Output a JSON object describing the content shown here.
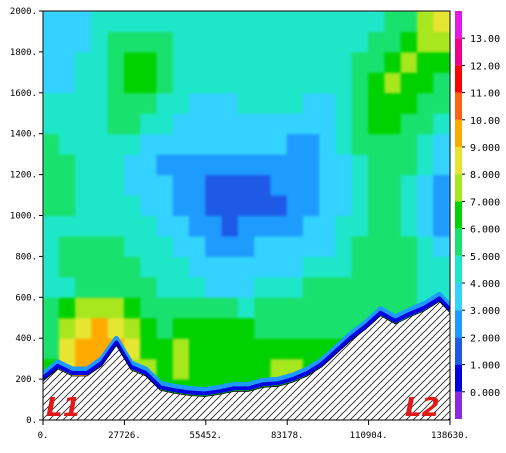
{
  "chart_data": {
    "type": "heatmap",
    "title": "",
    "xlabel": "",
    "ylabel": "",
    "xlim": [
      0,
      138630
    ],
    "ylim": [
      0,
      2000
    ],
    "x_ticks": [
      "0.",
      "27726.",
      "55452.",
      "83178.",
      "110904.",
      "138630."
    ],
    "x_tick_values": [
      0,
      27726,
      55452,
      83178,
      110904,
      138630
    ],
    "y_ticks": [
      "0.",
      "200.",
      "400.",
      "600.",
      "800.",
      "1000.",
      "1200.",
      "1400.",
      "1600.",
      "1800.",
      "2000."
    ],
    "y_tick_values": [
      0,
      200,
      400,
      600,
      800,
      1000,
      1200,
      1400,
      1600,
      1800,
      2000
    ],
    "colorbar": {
      "levels": [
        -1,
        0,
        1,
        2,
        3,
        4,
        5,
        6,
        7,
        8,
        9,
        10,
        11,
        12,
        13,
        14
      ],
      "labels": [
        "0.000",
        "1.000",
        "2.000",
        "3.000",
        "4.000",
        "5.000",
        "6.000",
        "7.000",
        "8.000",
        "9.000",
        "10.00",
        "11.00",
        "12.00",
        "13.00"
      ],
      "label_values": [
        0,
        1,
        2,
        3,
        4,
        5,
        6,
        7,
        8,
        9,
        10,
        11,
        12,
        13
      ],
      "colors": [
        "#8a2be2",
        "#0000e0",
        "#1e5ae6",
        "#1e9bff",
        "#33d2ff",
        "#1ee6c8",
        "#19e16e",
        "#00d200",
        "#a8e61e",
        "#e6e632",
        "#ffaa00",
        "#ff6414",
        "#ff0000",
        "#f00087",
        "#e619e6"
      ]
    },
    "terrain": {
      "x": [
        0,
        5000,
        10000,
        15000,
        20000,
        25000,
        30000,
        35000,
        40000,
        45000,
        50000,
        55000,
        60000,
        65000,
        70000,
        75000,
        80000,
        85000,
        90000,
        95000,
        100000,
        105000,
        110000,
        115000,
        120000,
        125000,
        130000,
        135000,
        138630
      ],
      "y": [
        190,
        250,
        215,
        215,
        265,
        365,
        245,
        215,
        145,
        130,
        120,
        115,
        125,
        140,
        140,
        160,
        165,
        185,
        215,
        260,
        325,
        390,
        445,
        510,
        470,
        505,
        535,
        580,
        525
      ]
    },
    "endpoint_labels": [
      "L1",
      "L2"
    ],
    "x_bins": 25,
    "y_bins": 20,
    "cells": [
      [
        7,
        9,
        10,
        9,
        8,
        7,
        7,
        7,
        7,
        7,
        7,
        7,
        7,
        7,
        6,
        6,
        6,
        6,
        6,
        6,
        5,
        -1,
        -1,
        -1,
        -1
      ],
      [
        7,
        9,
        10,
        10,
        9,
        8,
        8,
        7,
        7,
        7,
        7,
        7,
        7,
        7,
        7,
        7,
        7,
        7,
        6,
        6,
        5,
        -1,
        -1,
        -1,
        -1
      ],
      [
        7,
        9,
        10,
        10,
        10,
        8,
        8,
        7,
        8,
        7,
        7,
        7,
        7,
        7,
        8,
        8,
        7,
        7,
        7,
        6,
        6,
        5,
        4,
        -1,
        -1
      ],
      [
        6,
        9,
        10,
        10,
        10,
        9,
        7,
        7,
        8,
        7,
        7,
        7,
        7,
        7,
        7,
        7,
        7,
        7,
        7,
        6,
        6,
        5,
        5,
        5,
        4
      ],
      [
        6,
        8,
        9,
        10,
        9,
        8,
        7,
        6,
        7,
        7,
        7,
        7,
        7,
        6,
        6,
        6,
        6,
        6,
        6,
        6,
        6,
        6,
        5,
        5,
        5
      ],
      [
        6,
        7,
        8,
        8,
        8,
        7,
        6,
        6,
        6,
        6,
        6,
        6,
        5,
        6,
        6,
        6,
        6,
        6,
        6,
        6,
        6,
        6,
        6,
        5,
        5
      ],
      [
        5,
        5,
        6,
        6,
        6,
        6,
        6,
        5,
        5,
        5,
        4,
        4,
        4,
        5,
        5,
        5,
        6,
        6,
        6,
        6,
        6,
        6,
        6,
        5,
        5
      ],
      [
        5,
        6,
        6,
        6,
        6,
        6,
        5,
        5,
        5,
        4,
        4,
        4,
        4,
        4,
        4,
        4,
        5,
        5,
        5,
        6,
        6,
        6,
        6,
        5,
        5
      ],
      [
        5,
        6,
        6,
        6,
        6,
        5,
        5,
        5,
        4,
        4,
        3,
        3,
        3,
        4,
        4,
        4,
        4,
        4,
        5,
        6,
        6,
        6,
        6,
        5,
        4
      ],
      [
        5,
        5,
        5,
        5,
        5,
        5,
        5,
        4,
        4,
        3,
        3,
        2,
        3,
        3,
        3,
        3,
        4,
        4,
        5,
        5,
        6,
        6,
        5,
        4,
        3
      ],
      [
        6,
        6,
        5,
        5,
        5,
        5,
        4,
        4,
        3,
        3,
        2,
        2,
        2,
        2,
        2,
        3,
        3,
        4,
        4,
        5,
        6,
        6,
        5,
        4,
        3
      ],
      [
        6,
        6,
        5,
        5,
        5,
        4,
        4,
        4,
        3,
        3,
        2,
        2,
        2,
        2,
        3,
        3,
        3,
        4,
        4,
        5,
        6,
        6,
        5,
        4,
        3
      ],
      [
        6,
        6,
        5,
        5,
        5,
        4,
        4,
        3,
        3,
        3,
        3,
        3,
        3,
        3,
        3,
        3,
        3,
        4,
        4,
        5,
        6,
        6,
        6,
        5,
        4
      ],
      [
        6,
        5,
        5,
        5,
        5,
        5,
        4,
        4,
        4,
        4,
        4,
        4,
        4,
        4,
        4,
        3,
        3,
        4,
        5,
        6,
        6,
        6,
        6,
        5,
        4
      ],
      [
        5,
        5,
        5,
        5,
        6,
        6,
        5,
        5,
        4,
        4,
        4,
        4,
        4,
        4,
        4,
        4,
        4,
        4,
        5,
        6,
        7,
        7,
        6,
        6,
        5
      ],
      [
        5,
        5,
        5,
        5,
        6,
        6,
        6,
        5,
        5,
        4,
        4,
        4,
        5,
        5,
        5,
        5,
        4,
        4,
        5,
        6,
        7,
        7,
        7,
        6,
        6
      ],
      [
        4,
        4,
        5,
        5,
        6,
        7,
        7,
        6,
        5,
        5,
        5,
        5,
        5,
        5,
        5,
        5,
        5,
        5,
        5,
        6,
        7,
        8,
        7,
        7,
        6
      ],
      [
        4,
        4,
        5,
        5,
        6,
        7,
        7,
        6,
        5,
        5,
        5,
        5,
        5,
        5,
        5,
        5,
        5,
        5,
        5,
        6,
        6,
        7,
        8,
        7,
        7
      ],
      [
        4,
        4,
        4,
        5,
        6,
        6,
        6,
        6,
        5,
        5,
        5,
        5,
        5,
        5,
        5,
        5,
        5,
        5,
        5,
        5,
        6,
        6,
        7,
        8,
        8
      ],
      [
        4,
        4,
        4,
        5,
        5,
        5,
        5,
        5,
        5,
        5,
        5,
        5,
        5,
        5,
        5,
        5,
        5,
        5,
        5,
        5,
        5,
        6,
        6,
        8,
        9
      ]
    ]
  }
}
